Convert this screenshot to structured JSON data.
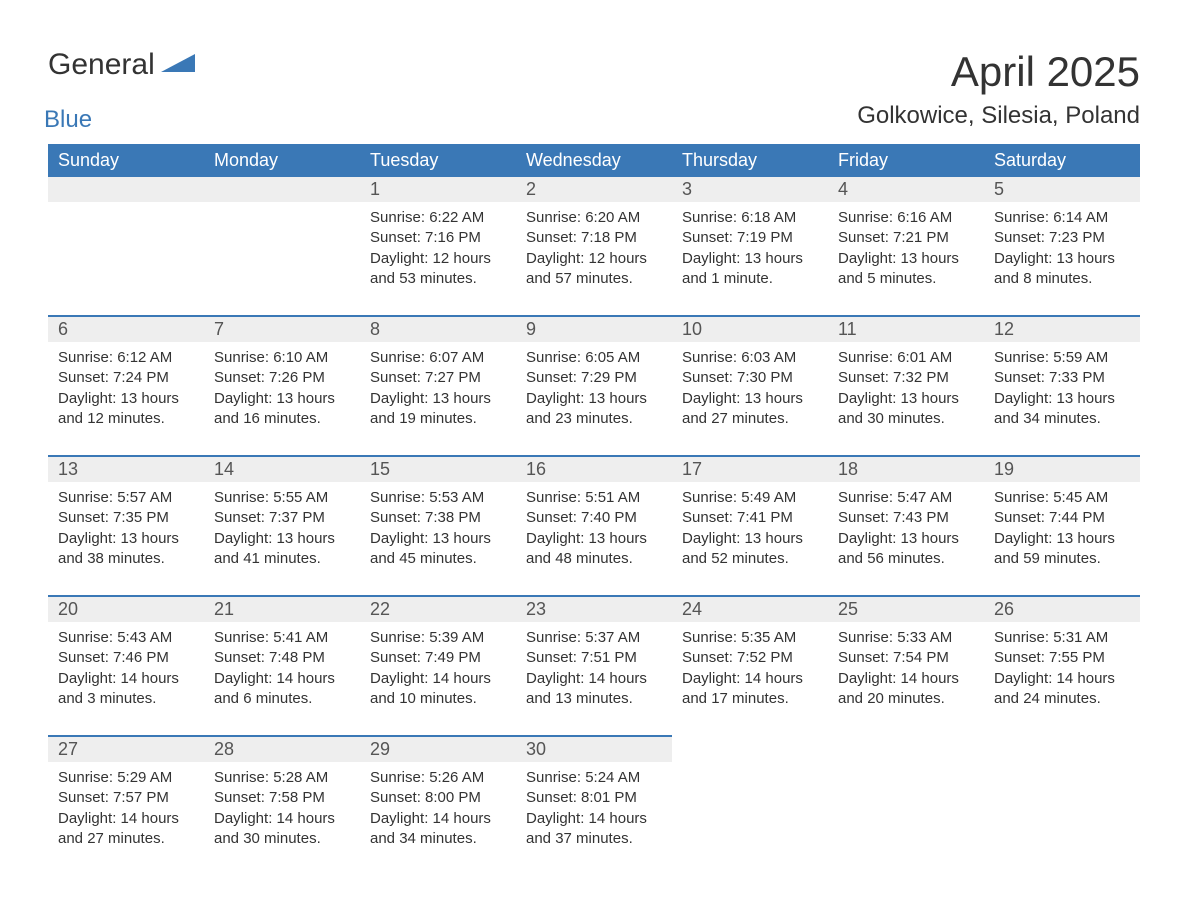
{
  "logo": {
    "general": "General",
    "blue": "Blue"
  },
  "title": {
    "month": "April 2025",
    "location": "Golkowice, Silesia, Poland"
  },
  "colors": {
    "header_bg": "#3a78b6",
    "header_fg": "#ffffff",
    "daynum_bg": "#eeeeee",
    "week_rule": "#3a78b6",
    "page_bg": "#ffffff",
    "text": "#333333",
    "logo_blue": "#3a78b6"
  },
  "calendar": {
    "type": "table",
    "columns": [
      "Sunday",
      "Monday",
      "Tuesday",
      "Wednesday",
      "Thursday",
      "Friday",
      "Saturday"
    ],
    "weeks": [
      [
        null,
        null,
        {
          "day": "1",
          "sunrise": "Sunrise: 6:22 AM",
          "sunset": "Sunset: 7:16 PM",
          "daylight": "Daylight: 12 hours and 53 minutes."
        },
        {
          "day": "2",
          "sunrise": "Sunrise: 6:20 AM",
          "sunset": "Sunset: 7:18 PM",
          "daylight": "Daylight: 12 hours and 57 minutes."
        },
        {
          "day": "3",
          "sunrise": "Sunrise: 6:18 AM",
          "sunset": "Sunset: 7:19 PM",
          "daylight": "Daylight: 13 hours and 1 minute."
        },
        {
          "day": "4",
          "sunrise": "Sunrise: 6:16 AM",
          "sunset": "Sunset: 7:21 PM",
          "daylight": "Daylight: 13 hours and 5 minutes."
        },
        {
          "day": "5",
          "sunrise": "Sunrise: 6:14 AM",
          "sunset": "Sunset: 7:23 PM",
          "daylight": "Daylight: 13 hours and 8 minutes."
        }
      ],
      [
        {
          "day": "6",
          "sunrise": "Sunrise: 6:12 AM",
          "sunset": "Sunset: 7:24 PM",
          "daylight": "Daylight: 13 hours and 12 minutes."
        },
        {
          "day": "7",
          "sunrise": "Sunrise: 6:10 AM",
          "sunset": "Sunset: 7:26 PM",
          "daylight": "Daylight: 13 hours and 16 minutes."
        },
        {
          "day": "8",
          "sunrise": "Sunrise: 6:07 AM",
          "sunset": "Sunset: 7:27 PM",
          "daylight": "Daylight: 13 hours and 19 minutes."
        },
        {
          "day": "9",
          "sunrise": "Sunrise: 6:05 AM",
          "sunset": "Sunset: 7:29 PM",
          "daylight": "Daylight: 13 hours and 23 minutes."
        },
        {
          "day": "10",
          "sunrise": "Sunrise: 6:03 AM",
          "sunset": "Sunset: 7:30 PM",
          "daylight": "Daylight: 13 hours and 27 minutes."
        },
        {
          "day": "11",
          "sunrise": "Sunrise: 6:01 AM",
          "sunset": "Sunset: 7:32 PM",
          "daylight": "Daylight: 13 hours and 30 minutes."
        },
        {
          "day": "12",
          "sunrise": "Sunrise: 5:59 AM",
          "sunset": "Sunset: 7:33 PM",
          "daylight": "Daylight: 13 hours and 34 minutes."
        }
      ],
      [
        {
          "day": "13",
          "sunrise": "Sunrise: 5:57 AM",
          "sunset": "Sunset: 7:35 PM",
          "daylight": "Daylight: 13 hours and 38 minutes."
        },
        {
          "day": "14",
          "sunrise": "Sunrise: 5:55 AM",
          "sunset": "Sunset: 7:37 PM",
          "daylight": "Daylight: 13 hours and 41 minutes."
        },
        {
          "day": "15",
          "sunrise": "Sunrise: 5:53 AM",
          "sunset": "Sunset: 7:38 PM",
          "daylight": "Daylight: 13 hours and 45 minutes."
        },
        {
          "day": "16",
          "sunrise": "Sunrise: 5:51 AM",
          "sunset": "Sunset: 7:40 PM",
          "daylight": "Daylight: 13 hours and 48 minutes."
        },
        {
          "day": "17",
          "sunrise": "Sunrise: 5:49 AM",
          "sunset": "Sunset: 7:41 PM",
          "daylight": "Daylight: 13 hours and 52 minutes."
        },
        {
          "day": "18",
          "sunrise": "Sunrise: 5:47 AM",
          "sunset": "Sunset: 7:43 PM",
          "daylight": "Daylight: 13 hours and 56 minutes."
        },
        {
          "day": "19",
          "sunrise": "Sunrise: 5:45 AM",
          "sunset": "Sunset: 7:44 PM",
          "daylight": "Daylight: 13 hours and 59 minutes."
        }
      ],
      [
        {
          "day": "20",
          "sunrise": "Sunrise: 5:43 AM",
          "sunset": "Sunset: 7:46 PM",
          "daylight": "Daylight: 14 hours and 3 minutes."
        },
        {
          "day": "21",
          "sunrise": "Sunrise: 5:41 AM",
          "sunset": "Sunset: 7:48 PM",
          "daylight": "Daylight: 14 hours and 6 minutes."
        },
        {
          "day": "22",
          "sunrise": "Sunrise: 5:39 AM",
          "sunset": "Sunset: 7:49 PM",
          "daylight": "Daylight: 14 hours and 10 minutes."
        },
        {
          "day": "23",
          "sunrise": "Sunrise: 5:37 AM",
          "sunset": "Sunset: 7:51 PM",
          "daylight": "Daylight: 14 hours and 13 minutes."
        },
        {
          "day": "24",
          "sunrise": "Sunrise: 5:35 AM",
          "sunset": "Sunset: 7:52 PM",
          "daylight": "Daylight: 14 hours and 17 minutes."
        },
        {
          "day": "25",
          "sunrise": "Sunrise: 5:33 AM",
          "sunset": "Sunset: 7:54 PM",
          "daylight": "Daylight: 14 hours and 20 minutes."
        },
        {
          "day": "26",
          "sunrise": "Sunrise: 5:31 AM",
          "sunset": "Sunset: 7:55 PM",
          "daylight": "Daylight: 14 hours and 24 minutes."
        }
      ],
      [
        {
          "day": "27",
          "sunrise": "Sunrise: 5:29 AM",
          "sunset": "Sunset: 7:57 PM",
          "daylight": "Daylight: 14 hours and 27 minutes."
        },
        {
          "day": "28",
          "sunrise": "Sunrise: 5:28 AM",
          "sunset": "Sunset: 7:58 PM",
          "daylight": "Daylight: 14 hours and 30 minutes."
        },
        {
          "day": "29",
          "sunrise": "Sunrise: 5:26 AM",
          "sunset": "Sunset: 8:00 PM",
          "daylight": "Daylight: 14 hours and 34 minutes."
        },
        {
          "day": "30",
          "sunrise": "Sunrise: 5:24 AM",
          "sunset": "Sunset: 8:01 PM",
          "daylight": "Daylight: 14 hours and 37 minutes."
        },
        null,
        null,
        null
      ]
    ]
  }
}
